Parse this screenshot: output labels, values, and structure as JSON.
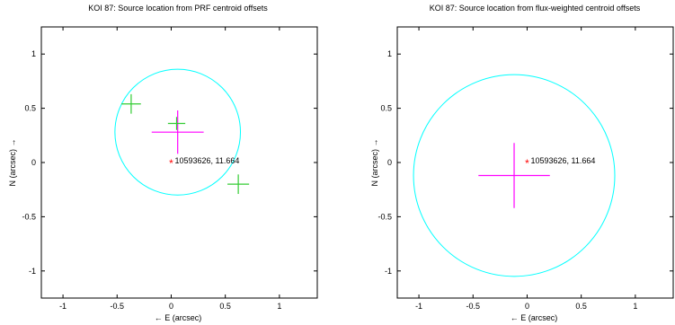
{
  "chart_data": [
    {
      "type": "scatter",
      "title": "KOI 87: Source location from PRF centroid offsets",
      "xlabel": "← E (arcsec)",
      "ylabel": "N (arcsec) →",
      "xlim": [
        -1.2,
        1.35
      ],
      "ylim": [
        -1.25,
        1.25
      ],
      "xticks": [
        "-1",
        "-0.5",
        "0",
        "0.5",
        "1"
      ],
      "xtick_values": [
        -1,
        -0.5,
        0,
        0.5,
        1
      ],
      "yticks": [
        "1",
        "0.5",
        "0",
        "-0.5",
        "-1"
      ],
      "ytick_values": [
        1,
        0.5,
        0,
        -0.5,
        -1
      ],
      "target": {
        "x": 0,
        "y": 0,
        "label": "10593626, 11.664",
        "color": "#ff0000"
      },
      "circle": {
        "cx": 0.06,
        "cy": 0.28,
        "r": 0.58,
        "color": "#00ffff"
      },
      "crosses": [
        {
          "x": 0.06,
          "y": 0.28,
          "dx": 0.24,
          "dy": 0.2,
          "color": "#ff00ff"
        },
        {
          "x": -0.37,
          "y": 0.54,
          "dx": 0.09,
          "dy": 0.09,
          "color": "#33cc33"
        },
        {
          "x": 0.05,
          "y": 0.36,
          "dx": 0.08,
          "dy": 0.06,
          "color": "#33cc33"
        },
        {
          "x": 0.62,
          "y": -0.2,
          "dx": 0.1,
          "dy": 0.09,
          "color": "#33cc33"
        }
      ]
    },
    {
      "type": "scatter",
      "title": "KOI 87: Source location from flux-weighted centroid offsets",
      "xlabel": "← E (arcsec)",
      "ylabel": "N (arcsec) →",
      "xlim": [
        -1.2,
        1.35
      ],
      "ylim": [
        -1.25,
        1.25
      ],
      "xticks": [
        "-1",
        "-0.5",
        "0",
        "0.5",
        "1"
      ],
      "xtick_values": [
        -1,
        -0.5,
        0,
        0.5,
        1
      ],
      "yticks": [
        "1",
        "0.5",
        "0",
        "-0.5",
        "-1"
      ],
      "ytick_values": [
        1,
        0.5,
        0,
        -0.5,
        -1
      ],
      "target": {
        "x": 0,
        "y": 0,
        "label": "10593626, 11.664",
        "color": "#ff0000"
      },
      "circle": {
        "cx": -0.12,
        "cy": -0.12,
        "r": 0.93,
        "color": "#00ffff"
      },
      "crosses": [
        {
          "x": -0.12,
          "y": -0.12,
          "dx": 0.33,
          "dy": 0.3,
          "color": "#ff00ff"
        }
      ]
    }
  ]
}
